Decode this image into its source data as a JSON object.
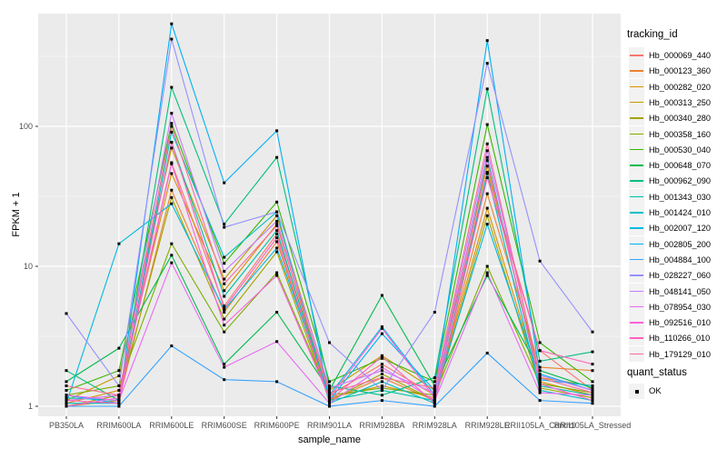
{
  "figure": {
    "xlabel": "sample_name",
    "ylabel": "FPKM + 1"
  },
  "legend": {
    "tracking_title": "tracking_id",
    "quant_title": "quant_status",
    "quant_ok_label": "OK"
  },
  "colors": {
    "panel_bg": "#EBEBEB",
    "grid_major": "#FFFFFF",
    "grid_minor": "#F6F6F6",
    "tick_label": "#4D4D4D",
    "point": "#000000",
    "legend_key_bg": "#F2F2F2"
  },
  "chart_data": {
    "type": "line",
    "title": "",
    "xlabel": "sample_name",
    "ylabel": "FPKM + 1",
    "yscale": "log10",
    "ylim": [
      0.85,
      640
    ],
    "yticks": [
      1,
      10,
      100
    ],
    "legend_title": "tracking_id",
    "legend_position": "right",
    "grid": true,
    "point_marker": "small black square (quant_status = OK)",
    "categories": [
      "PB350LA",
      "RRIM600LA",
      "RRIM600LE",
      "RRIM600SE",
      "RRIM600PE",
      "RRIM901LA",
      "RRIM928BA",
      "RRIM928LA",
      "RRIM928LE",
      "RRII105LA_Control",
      "RRII105LA_Stressed"
    ],
    "series": [
      {
        "name": "Hb_000069_440",
        "color": "#F8766D",
        "values": [
          1.1,
          1.2,
          55,
          5.2,
          17,
          1.2,
          2.0,
          1.2,
          47,
          2.5,
          1.3
        ]
      },
      {
        "name": "Hb_000123_360",
        "color": "#EA8331",
        "values": [
          1.0,
          1.1,
          35,
          4.7,
          15,
          1.1,
          1.6,
          1.1,
          33,
          1.9,
          1.8
        ]
      },
      {
        "name": "Hb_000282_020",
        "color": "#D89000",
        "values": [
          1.05,
          1.3,
          46,
          6.7,
          20,
          1.15,
          1.4,
          1.15,
          26,
          1.5,
          1.2
        ]
      },
      {
        "name": "Hb_000313_250",
        "color": "#C09B00",
        "values": [
          1.1,
          1.65,
          70,
          8.1,
          23,
          1.3,
          2.3,
          1.3,
          52,
          1.6,
          1.4
        ]
      },
      {
        "name": "Hb_000340_280",
        "color": "#A3A500",
        "values": [
          1.0,
          1.2,
          31,
          4.2,
          12.7,
          1.1,
          1.7,
          1.1,
          23,
          1.35,
          1.15
        ]
      },
      {
        "name": "Hb_000358_160",
        "color": "#7CAE00",
        "values": [
          1.2,
          1.4,
          14.5,
          3.4,
          9.0,
          1.2,
          1.35,
          1.2,
          10,
          1.45,
          1.25
        ]
      },
      {
        "name": "Hb_000530_040",
        "color": "#39B600",
        "values": [
          1.3,
          1.8,
          105,
          10.5,
          28.8,
          1.5,
          2.2,
          1.5,
          103,
          2.85,
          1.5
        ]
      },
      {
        "name": "Hb_000648_070",
        "color": "#00BB4E",
        "values": [
          1.5,
          2.6,
          12,
          2.0,
          4.7,
          1.3,
          6.2,
          1.4,
          8.6,
          1.8,
          1.35
        ]
      },
      {
        "name": "Hb_000962_090",
        "color": "#00BF7D",
        "values": [
          1.8,
          1.1,
          190,
          20,
          60,
          1.4,
          1.2,
          1.6,
          185,
          2.1,
          2.45
        ]
      },
      {
        "name": "Hb_001343_030",
        "color": "#00C1A3",
        "values": [
          1.15,
          1.1,
          77,
          6.1,
          18,
          1.1,
          1.3,
          1.1,
          60,
          1.4,
          1.2
        ]
      },
      {
        "name": "Hb_001424_010",
        "color": "#00BFC4",
        "values": [
          1.05,
          1.05,
          91,
          11.6,
          24.5,
          1.05,
          1.5,
          1.05,
          46,
          1.3,
          1.1
        ]
      },
      {
        "name": "Hb_002007_120",
        "color": "#00BAE0",
        "values": [
          1.05,
          14.5,
          28,
          4.9,
          13.5,
          1.2,
          3.7,
          1.2,
          20,
          1.55,
          1.4
        ]
      },
      {
        "name": "Hb_002805_200",
        "color": "#00B0F6",
        "values": [
          1.2,
          1.05,
          540,
          39.5,
          93,
          1.1,
          3.3,
          1.3,
          410,
          1.7,
          1.3
        ]
      },
      {
        "name": "Hb_004884_100",
        "color": "#35A2FF",
        "values": [
          1.0,
          1.0,
          2.7,
          1.55,
          1.5,
          1.0,
          1.1,
          1.0,
          2.4,
          1.1,
          1.05
        ]
      },
      {
        "name": "Hb_028227_060",
        "color": "#9590FF",
        "values": [
          4.6,
          1.4,
          420,
          19,
          24.5,
          2.85,
          1.3,
          4.7,
          282,
          10.9,
          3.4
        ]
      },
      {
        "name": "Hb_048141_050",
        "color": "#C77CFF",
        "values": [
          1.1,
          1.2,
          124,
          9.2,
          21,
          1.35,
          1.8,
          1.25,
          67,
          1.66,
          1.3
        ]
      },
      {
        "name": "Hb_078954_030",
        "color": "#E76BF3",
        "values": [
          1.2,
          1.1,
          10.6,
          1.9,
          2.9,
          1.05,
          1.9,
          1.1,
          9.0,
          1.25,
          1.2
        ]
      },
      {
        "name": "Hb_092516_010",
        "color": "#FA62DB",
        "values": [
          1.0,
          1.15,
          54,
          3.8,
          8.6,
          1.15,
          3.6,
          1.15,
          57,
          1.45,
          1.1
        ]
      },
      {
        "name": "Hb_110266_010",
        "color": "#FF62BC",
        "values": [
          1.1,
          1.05,
          77,
          5.0,
          16,
          1.1,
          2.27,
          1.05,
          43,
          2.5,
          2.0
        ]
      },
      {
        "name": "Hb_179129_010",
        "color": "#FF6A98",
        "values": [
          1.4,
          1.2,
          100,
          7.5,
          19.5,
          1.25,
          1.6,
          1.35,
          75,
          1.6,
          1.25
        ]
      }
    ],
    "quant_status_legend": {
      "title": "quant_status",
      "items": [
        "OK"
      ]
    }
  }
}
